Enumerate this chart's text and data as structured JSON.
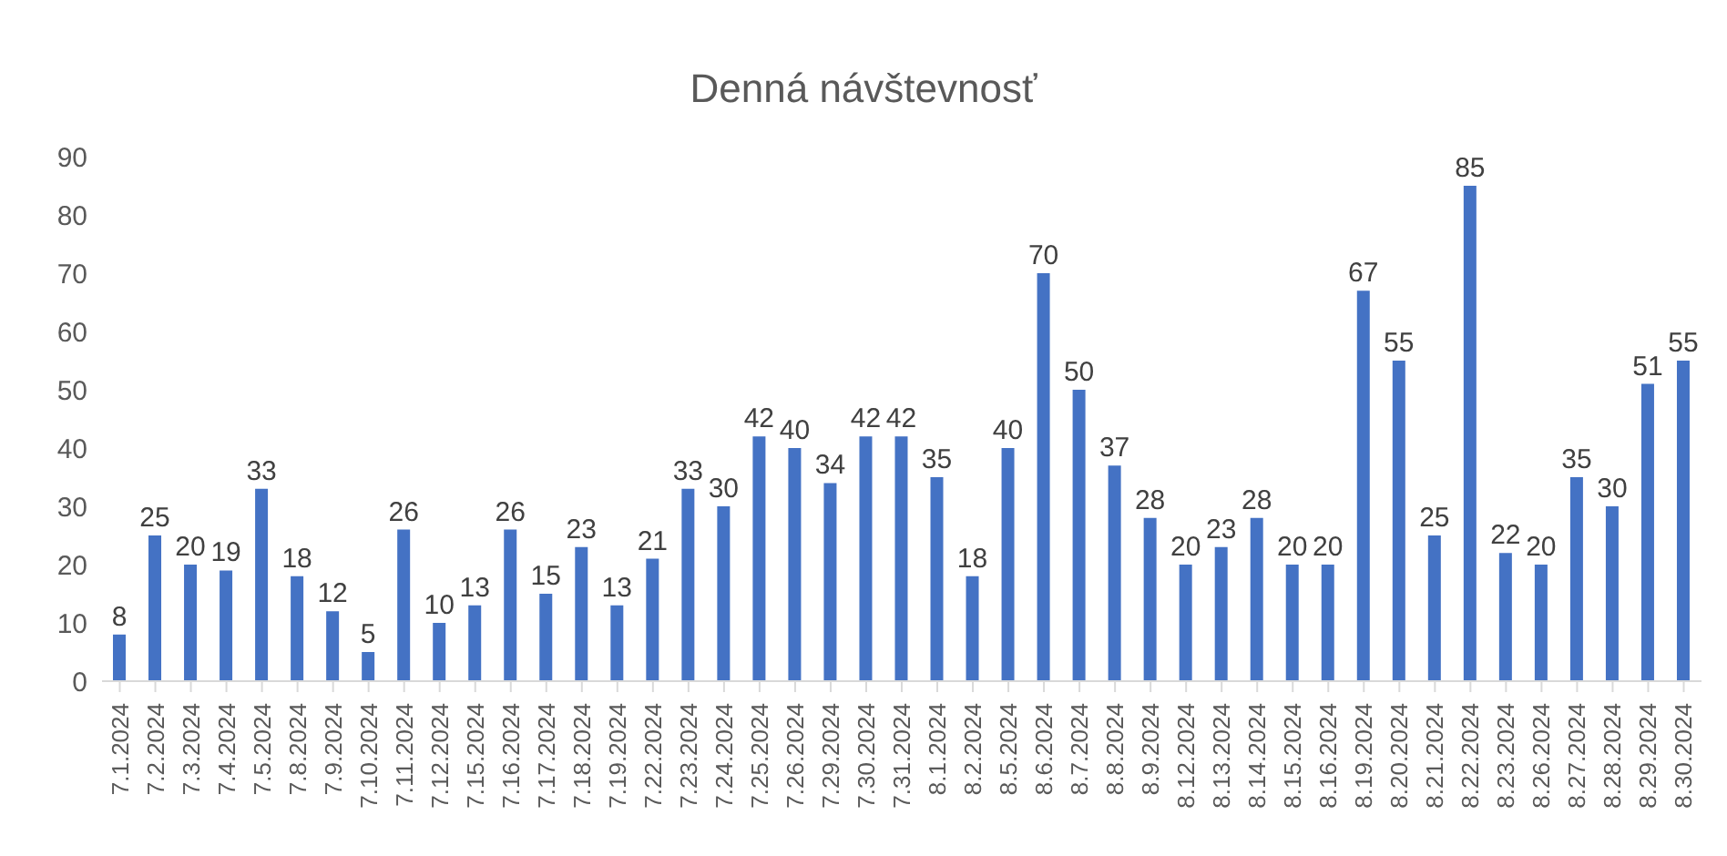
{
  "chart_data": {
    "type": "bar",
    "title": "Denná návštevnosť",
    "categories": [
      "7.1.2024",
      "7.2.2024",
      "7.3.2024",
      "7.4.2024",
      "7.5.2024",
      "7.8.2024",
      "7.9.2024",
      "7.10.2024",
      "7.11.2024",
      "7.12.2024",
      "7.15.2024",
      "7.16.2024",
      "7.17.2024",
      "7.18.2024",
      "7.19.2024",
      "7.22.2024",
      "7.23.2024",
      "7.24.2024",
      "7.25.2024",
      "7.26.2024",
      "7.29.2024",
      "7.30.2024",
      "7.31.2024",
      "8.1.2024",
      "8.2.2024",
      "8.5.2024",
      "8.6.2024",
      "8.7.2024",
      "8.8.2024",
      "8.9.2024",
      "8.12.2024",
      "8.13.2024",
      "8.14.2024",
      "8.15.2024",
      "8.16.2024",
      "8.19.2024",
      "8.20.2024",
      "8.21.2024",
      "8.22.2024",
      "8.23.2024",
      "8.26.2024",
      "8.27.2024",
      "8.28.2024",
      "8.29.2024",
      "8.30.2024"
    ],
    "values": [
      8,
      25,
      20,
      19,
      33,
      18,
      12,
      5,
      26,
      10,
      13,
      26,
      15,
      23,
      13,
      21,
      33,
      30,
      42,
      40,
      34,
      42,
      42,
      35,
      18,
      40,
      70,
      50,
      37,
      28,
      20,
      23,
      28,
      20,
      20,
      67,
      55,
      25,
      85,
      22,
      20,
      35,
      30,
      51,
      55
    ],
    "color": "#4472c4",
    "ylim": [
      0,
      90
    ],
    "yticks": [
      0,
      10,
      20,
      30,
      40,
      50,
      60,
      70,
      80,
      90
    ],
    "grid": false,
    "data_labels": true
  }
}
